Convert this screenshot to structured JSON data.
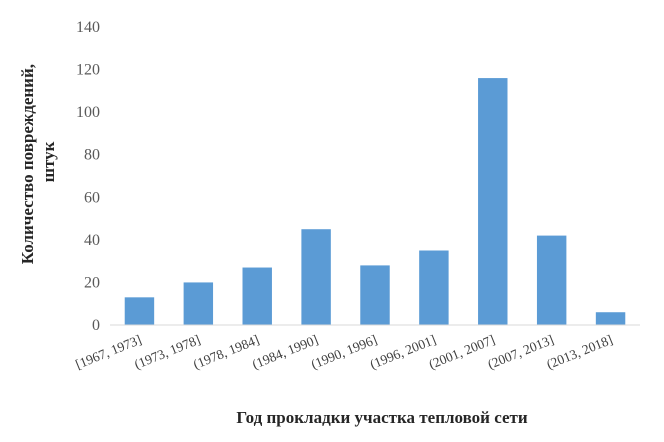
{
  "chart_data": {
    "type": "bar",
    "categories": [
      "[1967, 1973]",
      "(1973, 1978]",
      "(1978, 1984]",
      "(1984, 1990]",
      "(1990, 1996]",
      "(1996, 2001]",
      "(2001, 2007]",
      "(2007, 2013]",
      "(2013, 2018]"
    ],
    "values": [
      13,
      20,
      27,
      45,
      28,
      35,
      116,
      42,
      6
    ],
    "xlabel": "Год прокладки участка тепловой сети",
    "ylabel": "Количество повреждений, штук",
    "ylabel_lines": [
      "Количество повреждений,",
      "штук"
    ],
    "ylim": [
      0,
      140
    ],
    "yticks": [
      0,
      20,
      40,
      60,
      80,
      100,
      120,
      140
    ],
    "bar_color": "#5b9bd5",
    "grid": false,
    "legend": "none"
  }
}
